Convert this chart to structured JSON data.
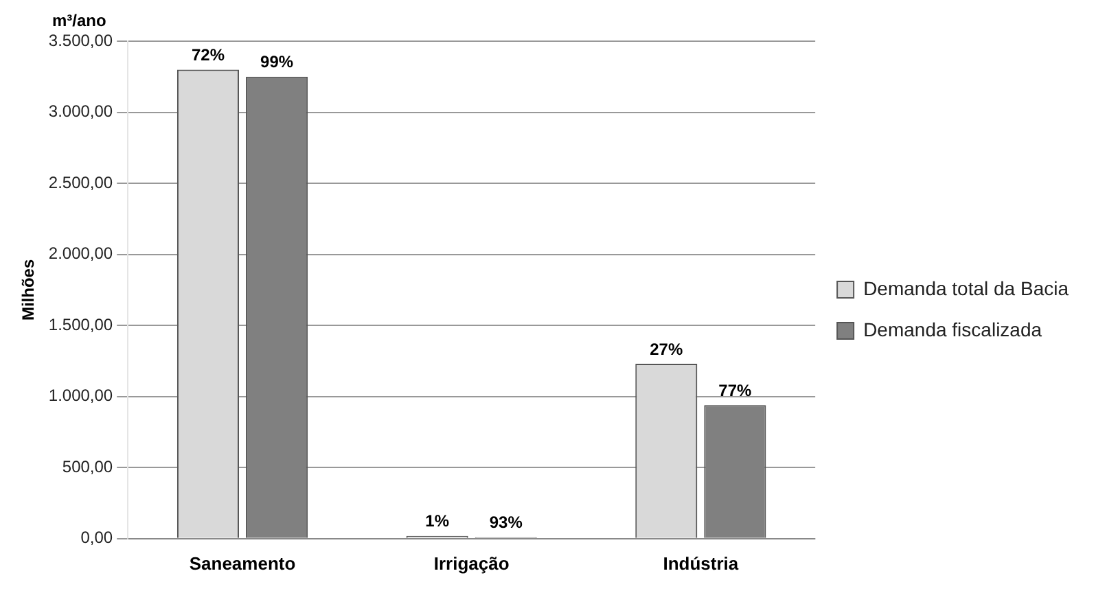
{
  "chart_data": {
    "type": "bar",
    "ylabel": "Milhões",
    "annotations": [
      "m³/ano",
      {
        "text": "72%",
        "x": "Saneamento",
        "y": 3300
      },
      {
        "text": "99%",
        "x": "Saneamento",
        "y": 3250
      },
      {
        "text": "1%",
        "x": "Irrigação",
        "y": 20
      },
      {
        "text": "93%",
        "x": "Irrigação",
        "y": 10
      },
      {
        "text": "27%",
        "x": "Indústria",
        "y": 1230
      },
      {
        "text": "77%",
        "x": "Indústria",
        "y": 940
      }
    ],
    "categories": [
      "Saneamento",
      "Irrigação",
      "Indústria"
    ],
    "series": [
      {
        "name": "Demanda total da Bacia",
        "color": "#d9d9d9",
        "values": [
          3300,
          20,
          1230
        ]
      },
      {
        "name": "Demanda fiscalizada",
        "color": "#808080",
        "values": [
          3250,
          10,
          940
        ]
      }
    ],
    "ylim": [
      0,
      3500
    ],
    "yticks": [
      {
        "value": 0,
        "label": "0,00"
      },
      {
        "value": 500,
        "label": "500,00"
      },
      {
        "value": 1000,
        "label": "1.000,00"
      },
      {
        "value": 1500,
        "label": "1.500,00"
      },
      {
        "value": 2000,
        "label": "2.000,00"
      },
      {
        "value": 2500,
        "label": "2.500,00"
      },
      {
        "value": 3000,
        "label": "3.000,00"
      },
      {
        "value": 3500,
        "label": "3.500,00"
      }
    ],
    "grid": "y",
    "legend": "right"
  }
}
